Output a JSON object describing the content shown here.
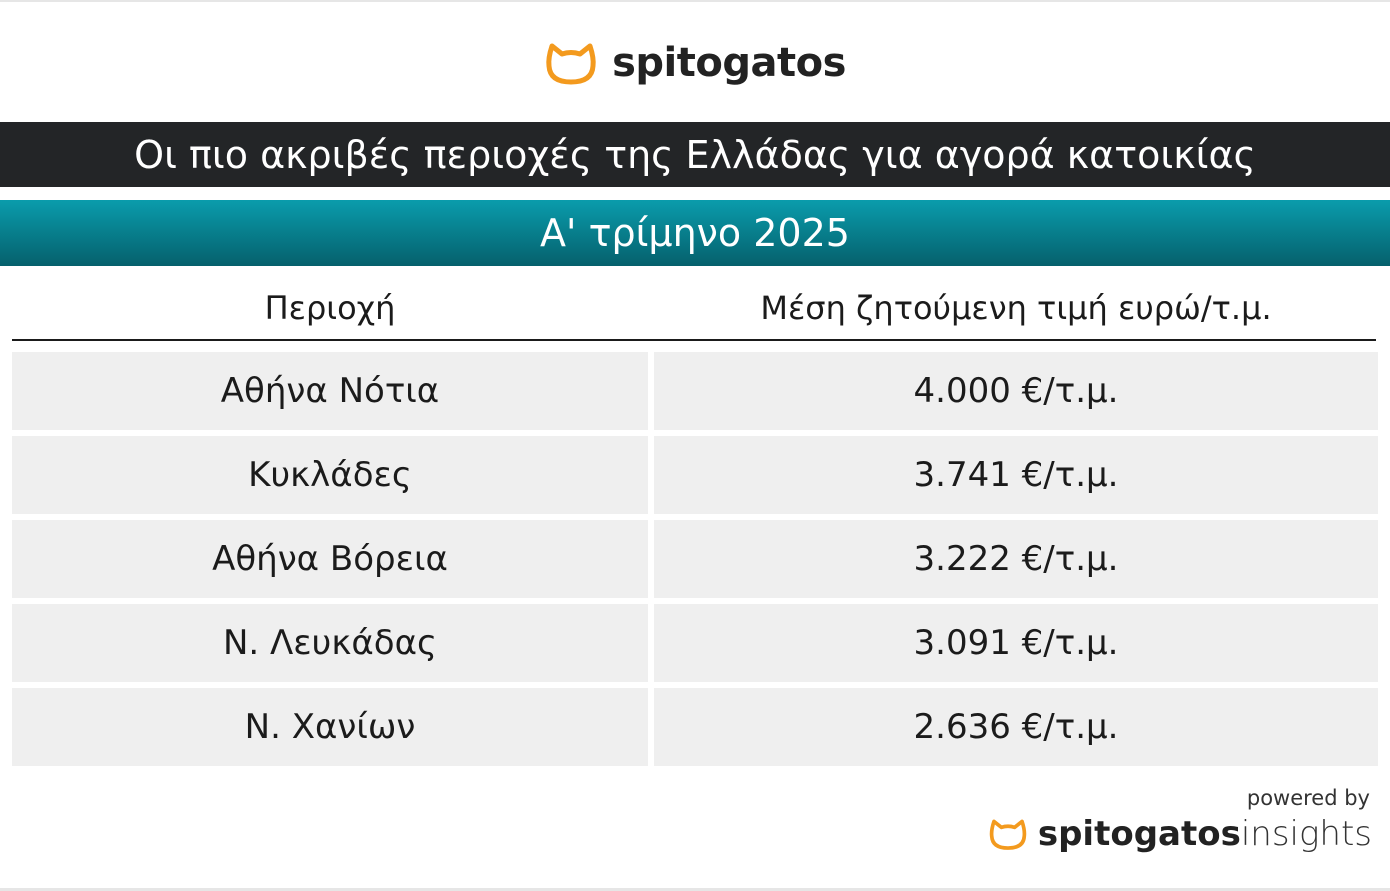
{
  "header": {
    "logo": "spitogatos",
    "title": "Οι πιο ακριβές περιοχές της Ελλάδας για αγορά κατοικίας",
    "subtitle": "Α' τρίμηνο 2025"
  },
  "table": {
    "columns": [
      "Περιοχή",
      "Μέση ζητούμενη τιμή ευρώ/τ.μ."
    ],
    "rows": [
      [
        "Αθήνα Νότια",
        "4.000 €/τ.μ."
      ],
      [
        "Κυκλάδες",
        "3.741 €/τ.μ."
      ],
      [
        "Αθήνα Βόρεια",
        "3.222 €/τ.μ."
      ],
      [
        "Ν. Λευκάδας",
        "3.091 €/τ.μ."
      ],
      [
        "Ν. Χανίων",
        "2.636 €/τ.μ."
      ]
    ]
  },
  "footer": {
    "powered_by": "powered by",
    "brand": "spitogatos",
    "brand_suffix": "insights"
  }
}
